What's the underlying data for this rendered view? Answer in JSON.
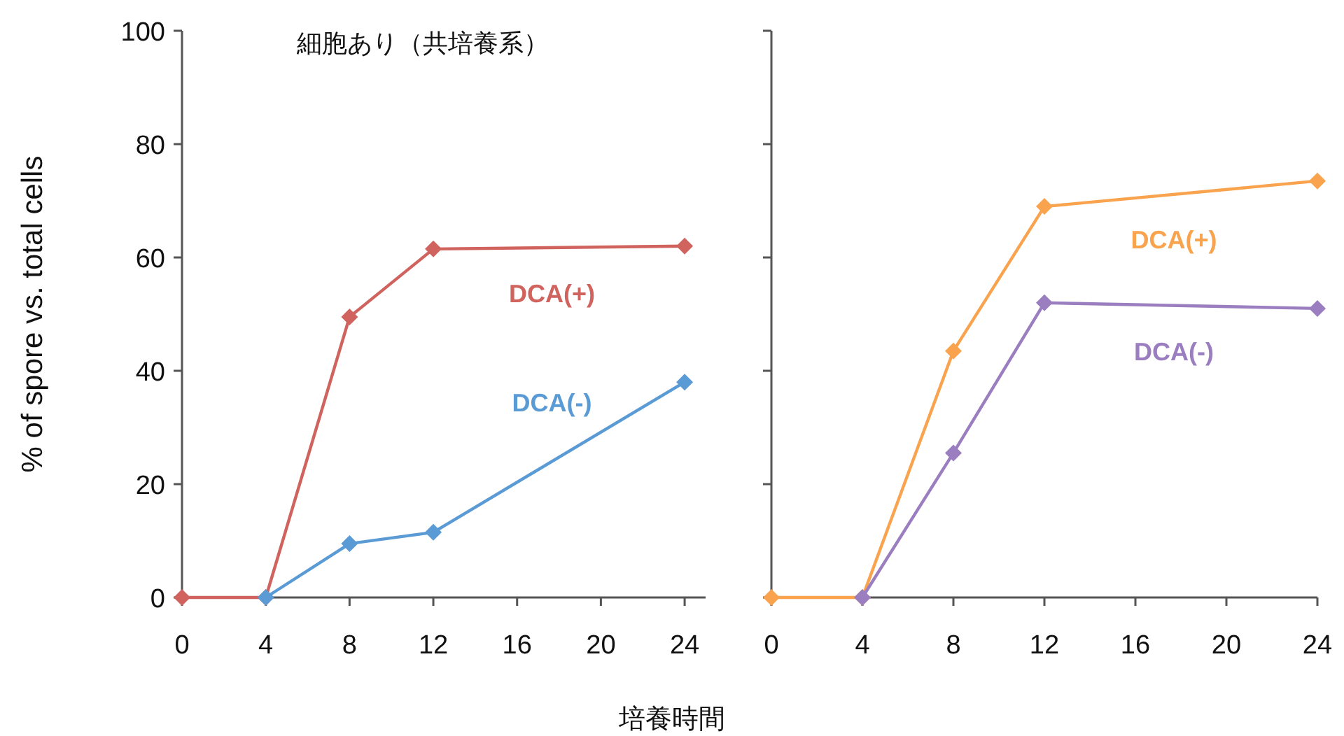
{
  "chart_data": [
    {
      "type": "line",
      "title": "細胞あり（共培養系）",
      "xlabel": "培養時間",
      "ylabel": "% of spore vs. total cells",
      "xlim": [
        0,
        25
      ],
      "ylim": [
        0,
        100
      ],
      "xticks": [
        0,
        4,
        8,
        12,
        16,
        20,
        24
      ],
      "yticks": [
        0,
        20,
        40,
        60,
        80,
        100
      ],
      "marker": "diamond",
      "grid": false,
      "series": [
        {
          "name": "DCA(+)",
          "color": "#d0635e",
          "x": [
            0,
            4,
            8,
            12,
            24
          ],
          "values": [
            0,
            0,
            49.5,
            61.5,
            62
          ]
        },
        {
          "name": "DCA(-)",
          "color": "#5b9bd5",
          "x": [
            4,
            8,
            12,
            24
          ],
          "values": [
            0,
            9.5,
            11.5,
            38
          ]
        }
      ]
    },
    {
      "type": "line",
      "xlim": [
        0,
        24
      ],
      "ylim": [
        0,
        100
      ],
      "xticks": [
        0,
        4,
        8,
        12,
        16,
        20,
        24
      ],
      "yticks": [
        0,
        20,
        40,
        60,
        80,
        100
      ],
      "tick_labels": "x",
      "marker": "diamond",
      "grid": false,
      "series": [
        {
          "name": "DCA(+)",
          "color": "#f9a34e",
          "x": [
            0,
            4,
            8,
            12,
            24
          ],
          "values": [
            0,
            0,
            43.5,
            69,
            73.5
          ]
        },
        {
          "name": "DCA(-)",
          "color": "#9a7ec0",
          "x": [
            4,
            8,
            12,
            24
          ],
          "values": [
            0,
            25.5,
            52,
            51
          ]
        }
      ]
    }
  ]
}
